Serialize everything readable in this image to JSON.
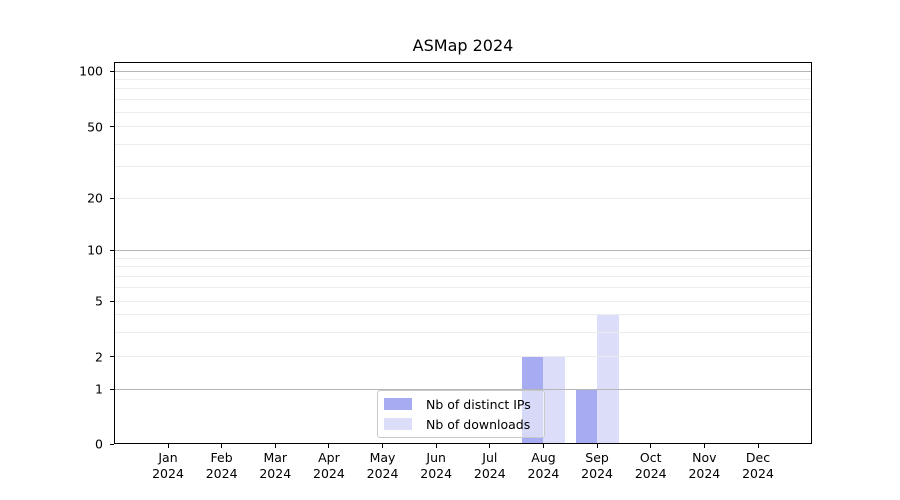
{
  "chart_data": {
    "type": "bar",
    "title": "ASMap 2024",
    "x_tick_labels": [
      {
        "month": "Jan",
        "year": "2024"
      },
      {
        "month": "Feb",
        "year": "2024"
      },
      {
        "month": "Mar",
        "year": "2024"
      },
      {
        "month": "Apr",
        "year": "2024"
      },
      {
        "month": "May",
        "year": "2024"
      },
      {
        "month": "Jun",
        "year": "2024"
      },
      {
        "month": "Jul",
        "year": "2024"
      },
      {
        "month": "Aug",
        "year": "2024"
      },
      {
        "month": "Sep",
        "year": "2024"
      },
      {
        "month": "Oct",
        "year": "2024"
      },
      {
        "month": "Nov",
        "year": "2024"
      },
      {
        "month": "Dec",
        "year": "2024"
      }
    ],
    "series": [
      {
        "name": "Nb of distinct IPs",
        "color": "#a6abf2",
        "values": [
          0,
          0,
          0,
          0,
          0,
          0,
          0,
          2,
          1,
          0,
          0,
          0
        ]
      },
      {
        "name": "Nb of downloads",
        "color": "#dcdef9",
        "values": [
          0,
          0,
          0,
          0,
          0,
          0,
          0,
          2,
          4,
          0,
          0,
          0
        ]
      }
    ],
    "y_axis": {
      "tick_values": [
        0,
        1,
        2,
        5,
        10,
        20,
        50,
        100
      ],
      "scale": "log-above-1",
      "range": [
        0,
        120
      ],
      "major_grid_values": [
        1,
        10,
        100
      ],
      "minor_grid_values": [
        2,
        3,
        4,
        5,
        6,
        7,
        8,
        9,
        20,
        30,
        40,
        50,
        60,
        70,
        80,
        90
      ]
    },
    "legend": {
      "position": "lower center"
    },
    "colors": {
      "major_grid": "#b5b5b5",
      "minor_grid": "#ececec",
      "axis": "#000000"
    }
  }
}
